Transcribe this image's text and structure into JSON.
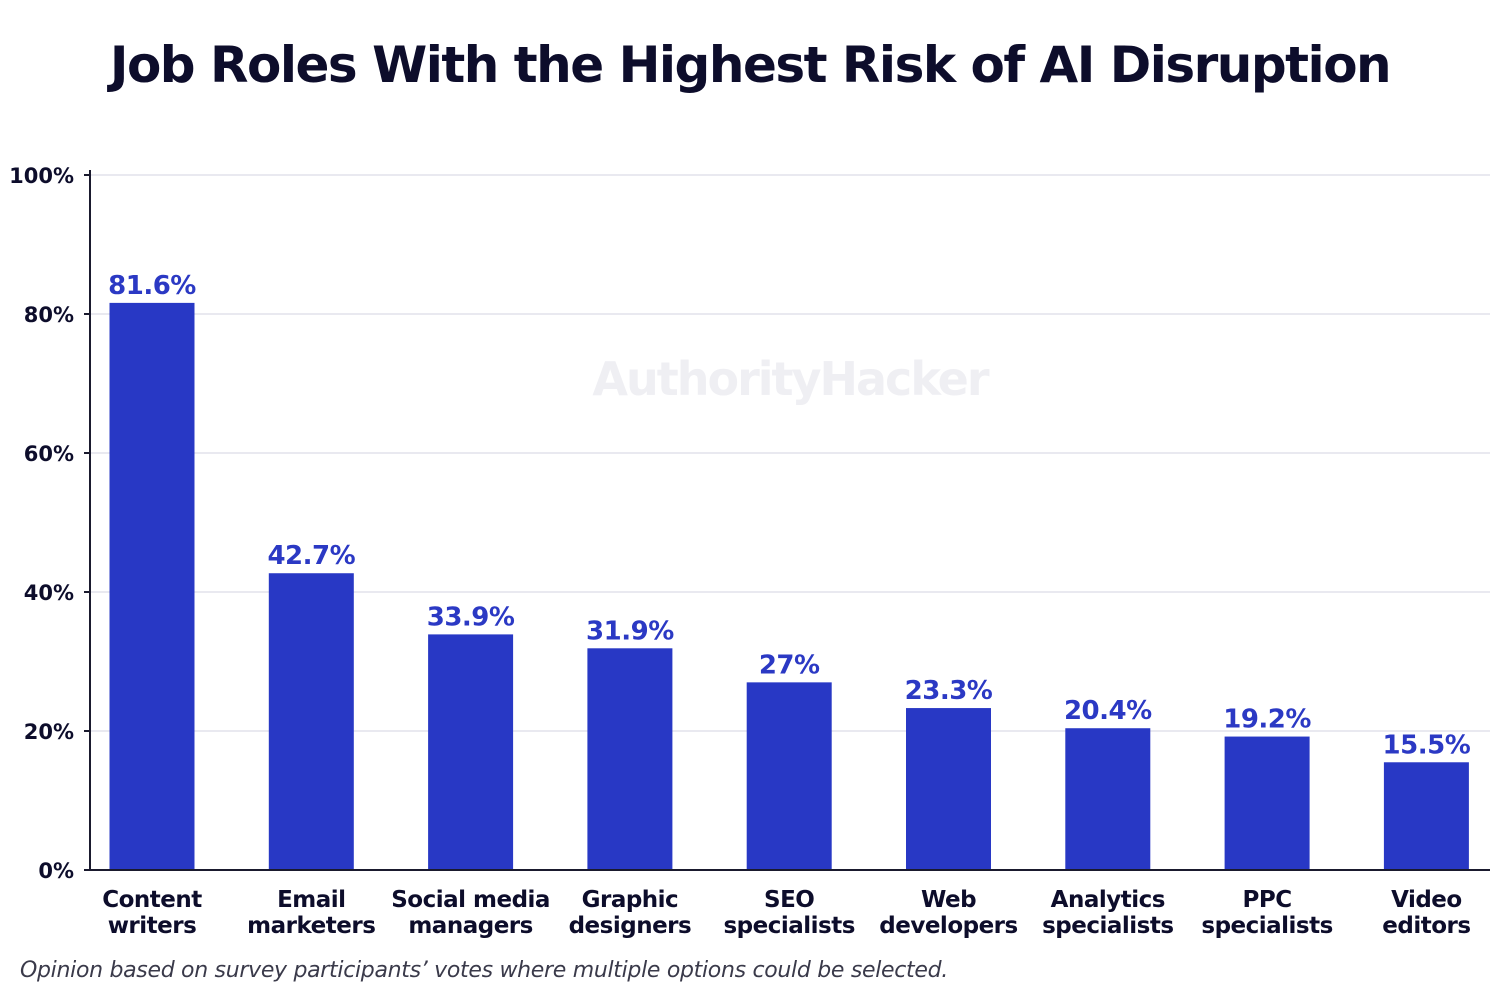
{
  "chart_data": {
    "type": "bar",
    "title": "Job Roles With the Highest Risk of AI Disruption",
    "watermark": "AuthorityHacker",
    "xlabel": "",
    "ylabel": "",
    "ylim": [
      0,
      100
    ],
    "yticks": [
      0,
      20,
      40,
      60,
      80,
      100
    ],
    "ytick_labels": [
      "0%",
      "20%",
      "40%",
      "60%",
      "80%",
      "100%"
    ],
    "grid": true,
    "bar_color": "#2838c5",
    "label_color": "#2b39c4",
    "categories": [
      [
        "Content",
        "writers"
      ],
      [
        "Email",
        "marketers"
      ],
      [
        "Social media",
        "managers"
      ],
      [
        "Graphic",
        "designers"
      ],
      [
        "SEO",
        "specialists"
      ],
      [
        "Web",
        "developers"
      ],
      [
        "Analytics",
        "specialists"
      ],
      [
        "PPC",
        "specialists"
      ],
      [
        "Video",
        "editors"
      ]
    ],
    "values": [
      81.6,
      42.7,
      33.9,
      31.9,
      27,
      23.3,
      20.4,
      19.2,
      15.5
    ],
    "value_labels": [
      "81.6%",
      "42.7%",
      "33.9%",
      "31.9%",
      "27%",
      "23.3%",
      "20.4%",
      "19.2%",
      "15.5%"
    ],
    "footnote": "Opinion based on survey participants’ votes where multiple options could be selected."
  }
}
